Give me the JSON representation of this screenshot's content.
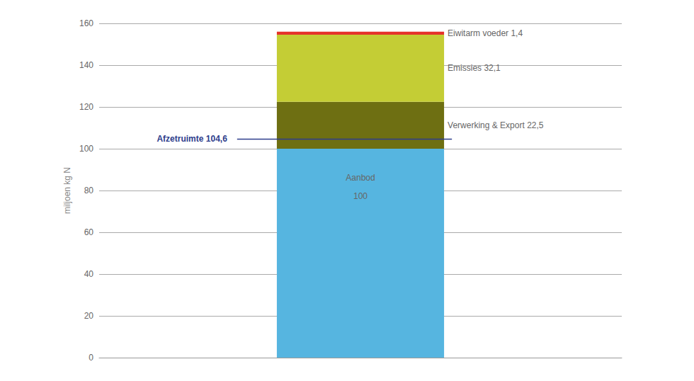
{
  "chart_data": {
    "type": "bar",
    "stacked": true,
    "grid": true,
    "data_labels": true,
    "categories": [
      null
    ],
    "y_label": "miljoen kg N",
    "ylim": [
      0,
      160
    ],
    "yticks": [
      0,
      20,
      40,
      60,
      80,
      100,
      120,
      140,
      160
    ],
    "series": [
      {
        "name": "Aanbod",
        "color": "#56b5e0",
        "values": [
          100
        ]
      },
      {
        "name": "Verwerking & Export",
        "color": "#6e6f12",
        "values": [
          22.5
        ],
        "value_labels": [
          "22,5"
        ]
      },
      {
        "name": "Emissies",
        "color": "#c4cd35",
        "values": [
          32.1
        ],
        "value_labels": [
          "32,1"
        ]
      },
      {
        "name": "Eiwitarm voeder",
        "color": "#e5332a",
        "values": [
          1.4
        ],
        "value_labels": [
          "1,4"
        ]
      }
    ],
    "reference_line": {
      "label": "Afzetruimte",
      "value": 104.6,
      "value_label": "104,6",
      "color": "#2e3d8c"
    }
  }
}
